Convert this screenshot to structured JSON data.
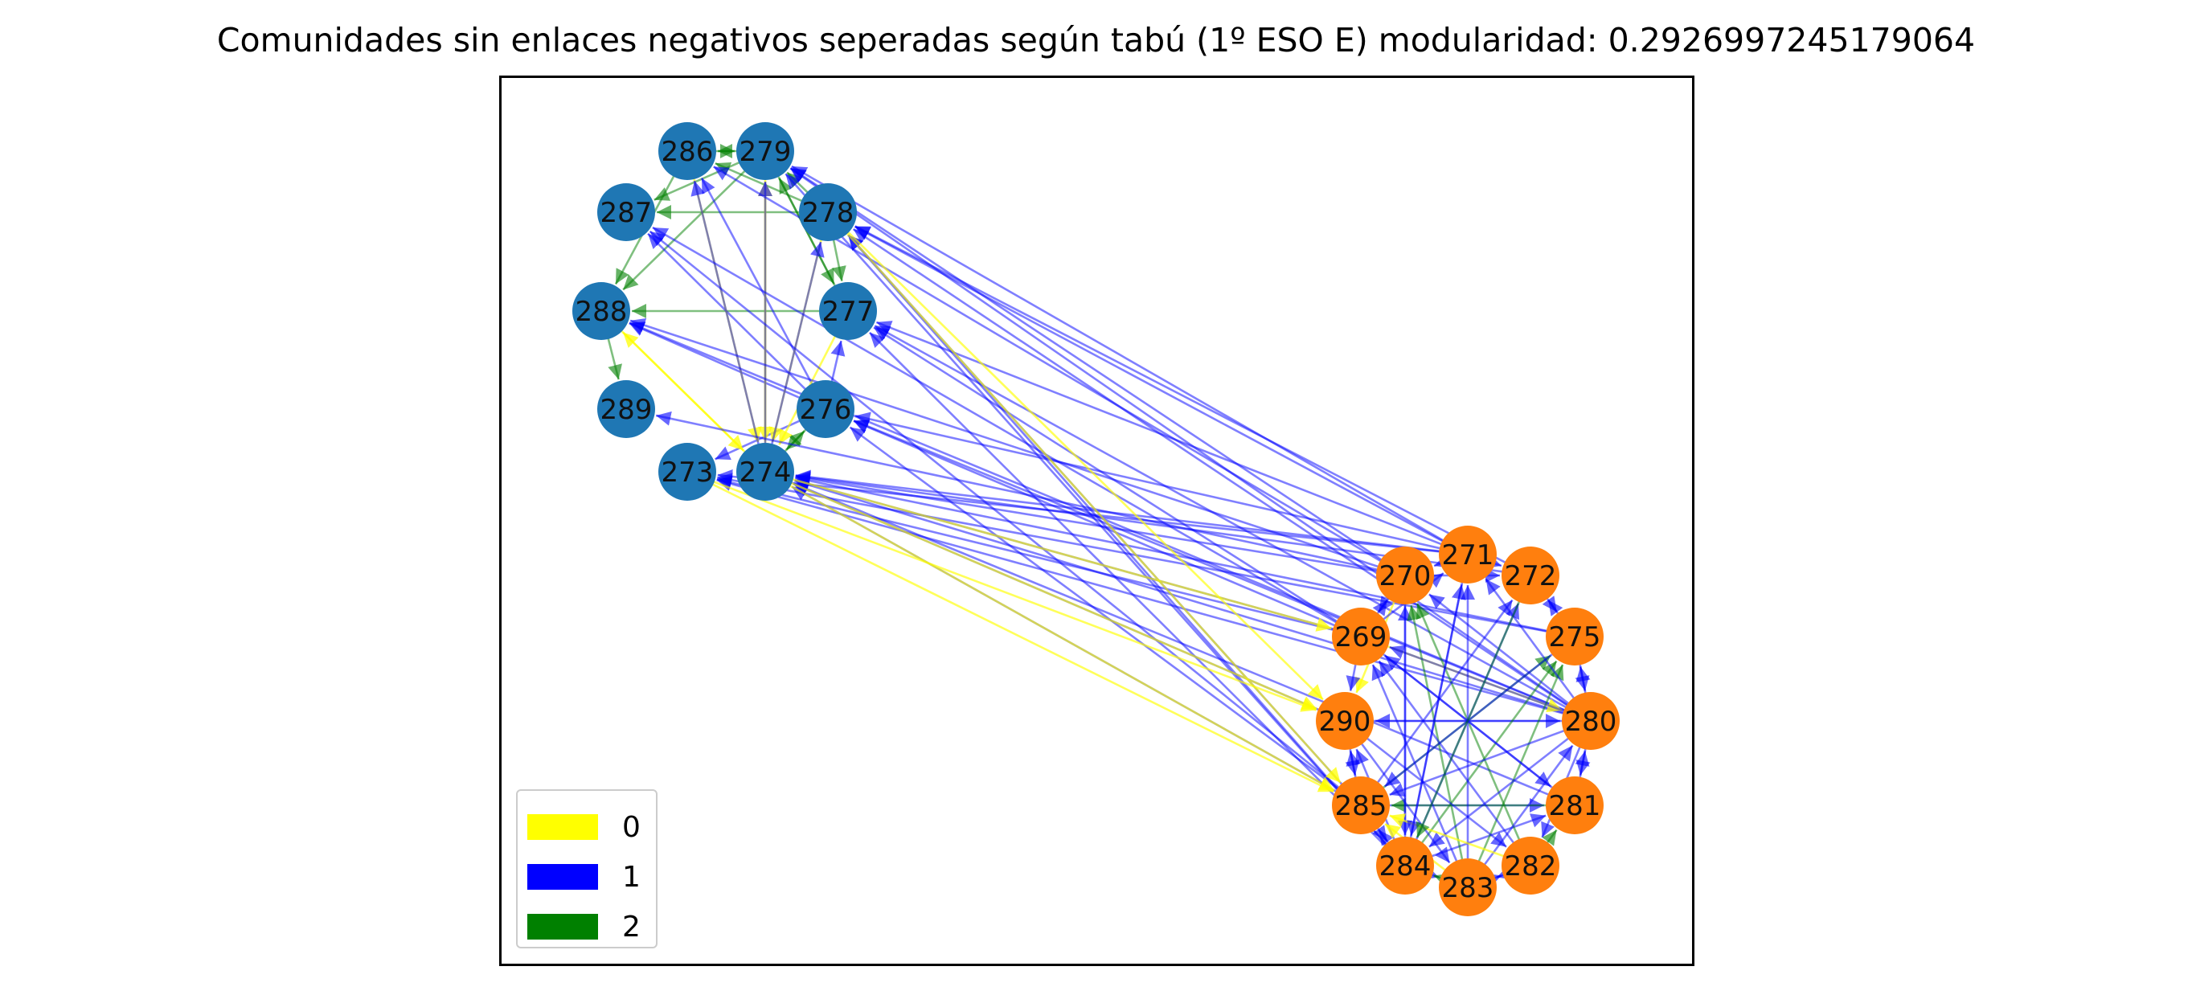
{
  "title": "Comunidades sin enlaces negativos seperadas según tabú (1º ESO E) modularidad: 0.2926997245179064",
  "legend": {
    "items": [
      {
        "label": "0",
        "color": "#ffff00"
      },
      {
        "label": "1",
        "color": "#0000ff"
      },
      {
        "label": "2",
        "color": "#008000"
      }
    ]
  },
  "communities": {
    "blue": {
      "color": "#1f77b4",
      "nodes": [
        "286",
        "279",
        "287",
        "278",
        "288",
        "277",
        "289",
        "276",
        "273",
        "274"
      ]
    },
    "orange": {
      "color": "#ff7f0e",
      "nodes": [
        "271",
        "270",
        "272",
        "269",
        "275",
        "290",
        "280",
        "285",
        "281",
        "284",
        "283",
        "282"
      ]
    }
  },
  "edge_colors": {
    "0": "#ffff00",
    "1": "#0000ff",
    "2": "#008000"
  },
  "edges": [
    [
      "286",
      "279",
      2
    ],
    [
      "279",
      "286",
      2
    ],
    [
      "278",
      "279",
      2
    ],
    [
      "278",
      "286",
      2
    ],
    [
      "279",
      "287",
      2
    ],
    [
      "278",
      "287",
      2
    ],
    [
      "286",
      "288",
      2
    ],
    [
      "279",
      "288",
      2
    ],
    [
      "277",
      "288",
      2
    ],
    [
      "278",
      "277",
      2
    ],
    [
      "279",
      "277",
      2
    ],
    [
      "288",
      "289",
      2
    ],
    [
      "277",
      "279",
      2
    ],
    [
      "276",
      "277",
      1
    ],
    [
      "276",
      "286",
      1
    ],
    [
      "276",
      "287",
      1
    ],
    [
      "276",
      "288",
      1
    ],
    [
      "276",
      "273",
      1
    ],
    [
      "274",
      "276",
      2
    ],
    [
      "276",
      "274",
      2
    ],
    [
      "274",
      "279",
      0
    ],
    [
      "286",
      "274",
      0
    ],
    [
      "279",
      "274",
      0
    ],
    [
      "278",
      "274",
      0
    ],
    [
      "277",
      "274",
      0
    ],
    [
      "274",
      "288",
      0
    ],
    [
      "288",
      "274",
      0
    ],
    [
      "274",
      "286",
      1
    ],
    [
      "274",
      "279",
      1
    ],
    [
      "274",
      "278",
      1
    ],
    [
      "271",
      "279",
      1
    ],
    [
      "271",
      "278",
      1
    ],
    [
      "271",
      "277",
      1
    ],
    [
      "271",
      "276",
      1
    ],
    [
      "271",
      "273",
      1
    ],
    [
      "271",
      "274",
      1
    ],
    [
      "270",
      "279",
      1
    ],
    [
      "270",
      "286",
      1
    ],
    [
      "270",
      "288",
      1
    ],
    [
      "270",
      "289",
      1
    ],
    [
      "270",
      "274",
      1
    ],
    [
      "269",
      "287",
      1
    ],
    [
      "269",
      "277",
      1
    ],
    [
      "269",
      "274",
      1
    ],
    [
      "269",
      "273",
      1
    ],
    [
      "269",
      "276",
      1
    ],
    [
      "280",
      "278",
      1
    ],
    [
      "280",
      "279",
      1
    ],
    [
      "280",
      "277",
      1
    ],
    [
      "280",
      "288",
      1
    ],
    [
      "280",
      "276",
      1
    ],
    [
      "280",
      "274",
      1
    ],
    [
      "280",
      "273",
      1
    ],
    [
      "285",
      "287",
      1
    ],
    [
      "285",
      "278",
      1
    ],
    [
      "285",
      "276",
      1
    ],
    [
      "285",
      "274",
      1
    ],
    [
      "284",
      "279",
      1
    ],
    [
      "284",
      "278",
      1
    ],
    [
      "284",
      "277",
      1
    ],
    [
      "272",
      "278",
      1
    ],
    [
      "272",
      "274",
      1
    ],
    [
      "275",
      "274",
      1
    ],
    [
      "275",
      "273",
      1
    ],
    [
      "290",
      "274",
      1
    ],
    [
      "281",
      "274",
      1
    ],
    [
      "274",
      "290",
      0
    ],
    [
      "273",
      "290",
      0
    ],
    [
      "274",
      "285",
      0
    ],
    [
      "273",
      "285",
      0
    ],
    [
      "278",
      "290",
      0
    ],
    [
      "278",
      "285",
      0
    ],
    [
      "270",
      "290",
      0
    ],
    [
      "274",
      "269",
      0
    ],
    [
      "269",
      "280",
      0
    ],
    [
      "271",
      "270",
      1
    ],
    [
      "271",
      "272",
      1
    ],
    [
      "270",
      "272",
      1
    ],
    [
      "269",
      "270",
      1
    ],
    [
      "269",
      "271",
      1
    ],
    [
      "270",
      "269",
      1
    ],
    [
      "275",
      "280",
      1
    ],
    [
      "280",
      "275",
      1
    ],
    [
      "275",
      "272",
      1
    ],
    [
      "272",
      "275",
      1
    ],
    [
      "269",
      "290",
      1
    ],
    [
      "290",
      "280",
      1
    ],
    [
      "280",
      "290",
      1
    ],
    [
      "280",
      "281",
      1
    ],
    [
      "281",
      "280",
      1
    ],
    [
      "280",
      "282",
      1
    ],
    [
      "282",
      "281",
      2
    ],
    [
      "285",
      "284",
      1
    ],
    [
      "284",
      "285",
      1
    ],
    [
      "284",
      "283",
      1
    ],
    [
      "283",
      "284",
      2
    ],
    [
      "283",
      "282",
      1
    ],
    [
      "282",
      "283",
      1
    ],
    [
      "285",
      "290",
      1
    ],
    [
      "290",
      "285",
      1
    ],
    [
      "285",
      "281",
      1
    ],
    [
      "281",
      "285",
      2
    ],
    [
      "284",
      "281",
      1
    ],
    [
      "284",
      "290",
      1
    ],
    [
      "284",
      "270",
      1
    ],
    [
      "270",
      "284",
      1
    ],
    [
      "283",
      "270",
      2
    ],
    [
      "282",
      "270",
      2
    ],
    [
      "284",
      "272",
      1
    ],
    [
      "285",
      "272",
      1
    ],
    [
      "283",
      "275",
      2
    ],
    [
      "284",
      "275",
      2
    ],
    [
      "285",
      "275",
      2
    ],
    [
      "283",
      "269",
      1
    ],
    [
      "282",
      "269",
      1
    ],
    [
      "281",
      "269",
      1
    ],
    [
      "283",
      "271",
      1
    ],
    [
      "284",
      "271",
      1
    ],
    [
      "280",
      "285",
      1
    ],
    [
      "280",
      "284",
      1
    ],
    [
      "283",
      "280",
      1
    ],
    [
      "280",
      "269",
      1
    ],
    [
      "280",
      "270",
      1
    ],
    [
      "280",
      "271",
      1
    ],
    [
      "282",
      "285",
      0
    ],
    [
      "283",
      "285",
      0
    ],
    [
      "290",
      "283",
      1
    ],
    [
      "290",
      "282",
      1
    ],
    [
      "269",
      "281",
      1
    ],
    [
      "271",
      "284",
      1
    ],
    [
      "275",
      "285",
      1
    ],
    [
      "272",
      "284",
      2
    ]
  ]
}
